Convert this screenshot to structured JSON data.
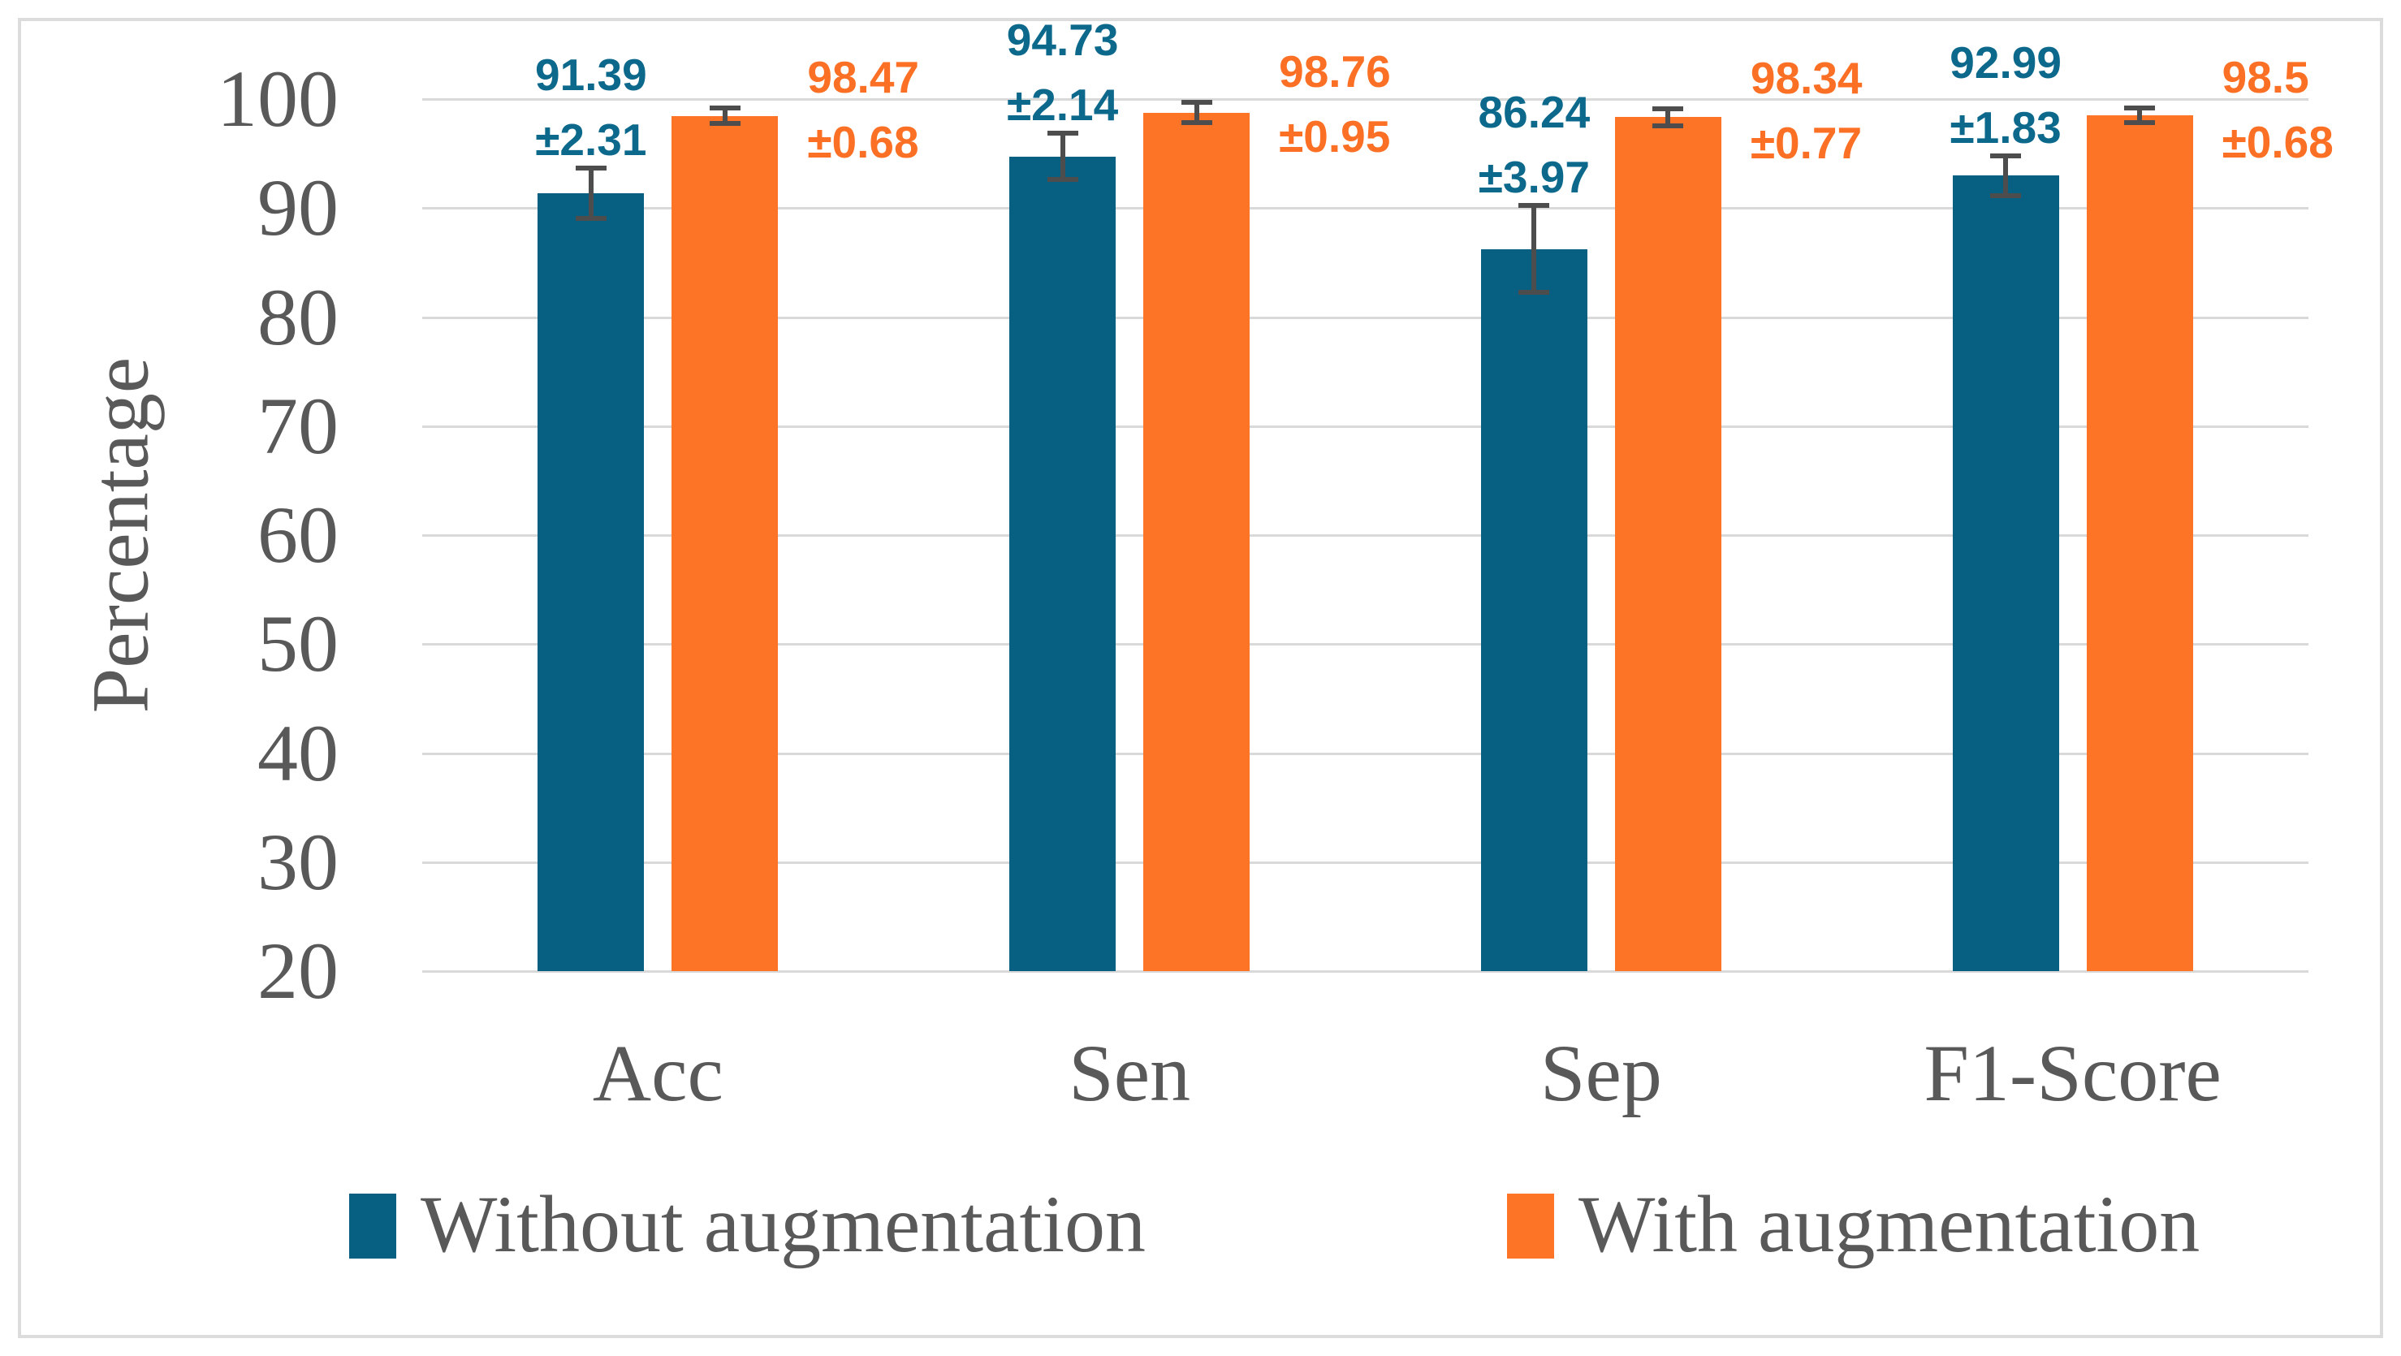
{
  "figure": {
    "background": "#ffffff",
    "border_color": "#DCDCDC"
  },
  "chart_data": {
    "type": "bar",
    "title": "",
    "xlabel": "",
    "ylabel": "Percentage",
    "categories": [
      "Acc",
      "Sen",
      "Sep",
      "F1-Score"
    ],
    "series": [
      {
        "name": "Without augmentation",
        "color": "#076081",
        "label_color": "#0D698C",
        "values": [
          91.39,
          94.73,
          86.24,
          92.99
        ],
        "errors": [
          2.31,
          2.14,
          3.97,
          1.83
        ],
        "value_labels": [
          "91.39",
          "94.73",
          "86.24",
          "92.99"
        ],
        "error_labels": [
          "±2.31",
          "±2.14",
          "±3.97",
          "±1.83"
        ]
      },
      {
        "name": "With augmentation",
        "color": "#FD7426",
        "label_color": "#FB7024",
        "values": [
          98.47,
          98.76,
          98.34,
          98.5
        ],
        "errors": [
          0.68,
          0.95,
          0.77,
          0.68
        ],
        "value_labels": [
          "98.47",
          "98.76",
          "98.34",
          "98.5"
        ],
        "error_labels": [
          "±0.68",
          "±0.95",
          "±0.77",
          "±0.68"
        ]
      }
    ],
    "ylim": [
      20,
      100
    ],
    "yticks": [
      100,
      90,
      80,
      70,
      60,
      50,
      40,
      30,
      20
    ],
    "grid": true,
    "gridline_color": "#D9D9D9",
    "error_bar_color": "#4D4D4D",
    "axis_text_color": "#595959",
    "legend_position": "bottom"
  },
  "legend": {
    "items": [
      {
        "label": "Without augmentation",
        "color": "#076081"
      },
      {
        "label": "With augmentation",
        "color": "#FD7426"
      }
    ]
  }
}
